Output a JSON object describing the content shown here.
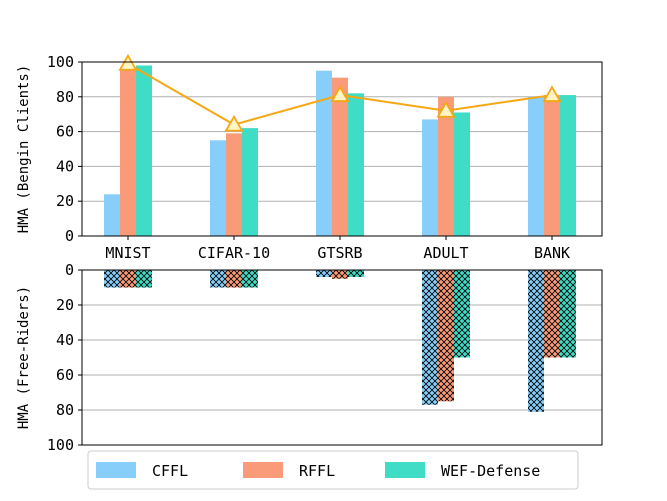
{
  "chart_data": [
    {
      "type": "bar",
      "panel": "top",
      "ylabel": "HMA (Bengin Clients)",
      "ylim": [
        0,
        100
      ],
      "yticks": [
        "0",
        "20",
        "40",
        "60",
        "80",
        "100"
      ],
      "grid": true,
      "categories": [
        "MNIST",
        "CIFAR-10",
        "GTSRB",
        "ADULT",
        "BANK"
      ],
      "series": [
        {
          "name": "CFFL",
          "values": [
            24,
            55,
            95,
            67,
            80
          ]
        },
        {
          "name": "RFFL",
          "values": [
            97,
            59,
            91,
            80,
            81
          ]
        },
        {
          "name": "WEF-Defense",
          "values": [
            98,
            62,
            82,
            71,
            81
          ]
        }
      ],
      "line": {
        "values": [
          99,
          64,
          81,
          72,
          81
        ]
      }
    },
    {
      "type": "bar",
      "panel": "bottom",
      "ylabel": "HMA (Free-Riders)",
      "ylim": [
        0,
        100
      ],
      "yaxis": "inverted",
      "yticks": [
        "0",
        "20",
        "40",
        "60",
        "80",
        "100"
      ],
      "grid": true,
      "hatch": "crosshatch",
      "categories": [
        "MNIST",
        "CIFAR-10",
        "GTSRB",
        "ADULT",
        "BANK"
      ],
      "series": [
        {
          "name": "CFFL",
          "values": [
            10,
            10,
            4,
            77,
            81
          ]
        },
        {
          "name": "RFFL",
          "values": [
            10,
            10,
            5,
            75,
            50
          ]
        },
        {
          "name": "WEF-Defense",
          "values": [
            10,
            10,
            4,
            50,
            50
          ]
        }
      ]
    }
  ],
  "legend": {
    "location": "bottom",
    "entries": [
      "CFFL",
      "RFFL",
      "WEF-Defense"
    ]
  },
  "colors": {
    "CFFL": "#87cefa",
    "RFFL": "#f99b78",
    "WEF-Defense": "#3fdcc6",
    "line": "#f5a814",
    "marker_fill": "#fff5c4",
    "grid": "#b0b0b0"
  }
}
